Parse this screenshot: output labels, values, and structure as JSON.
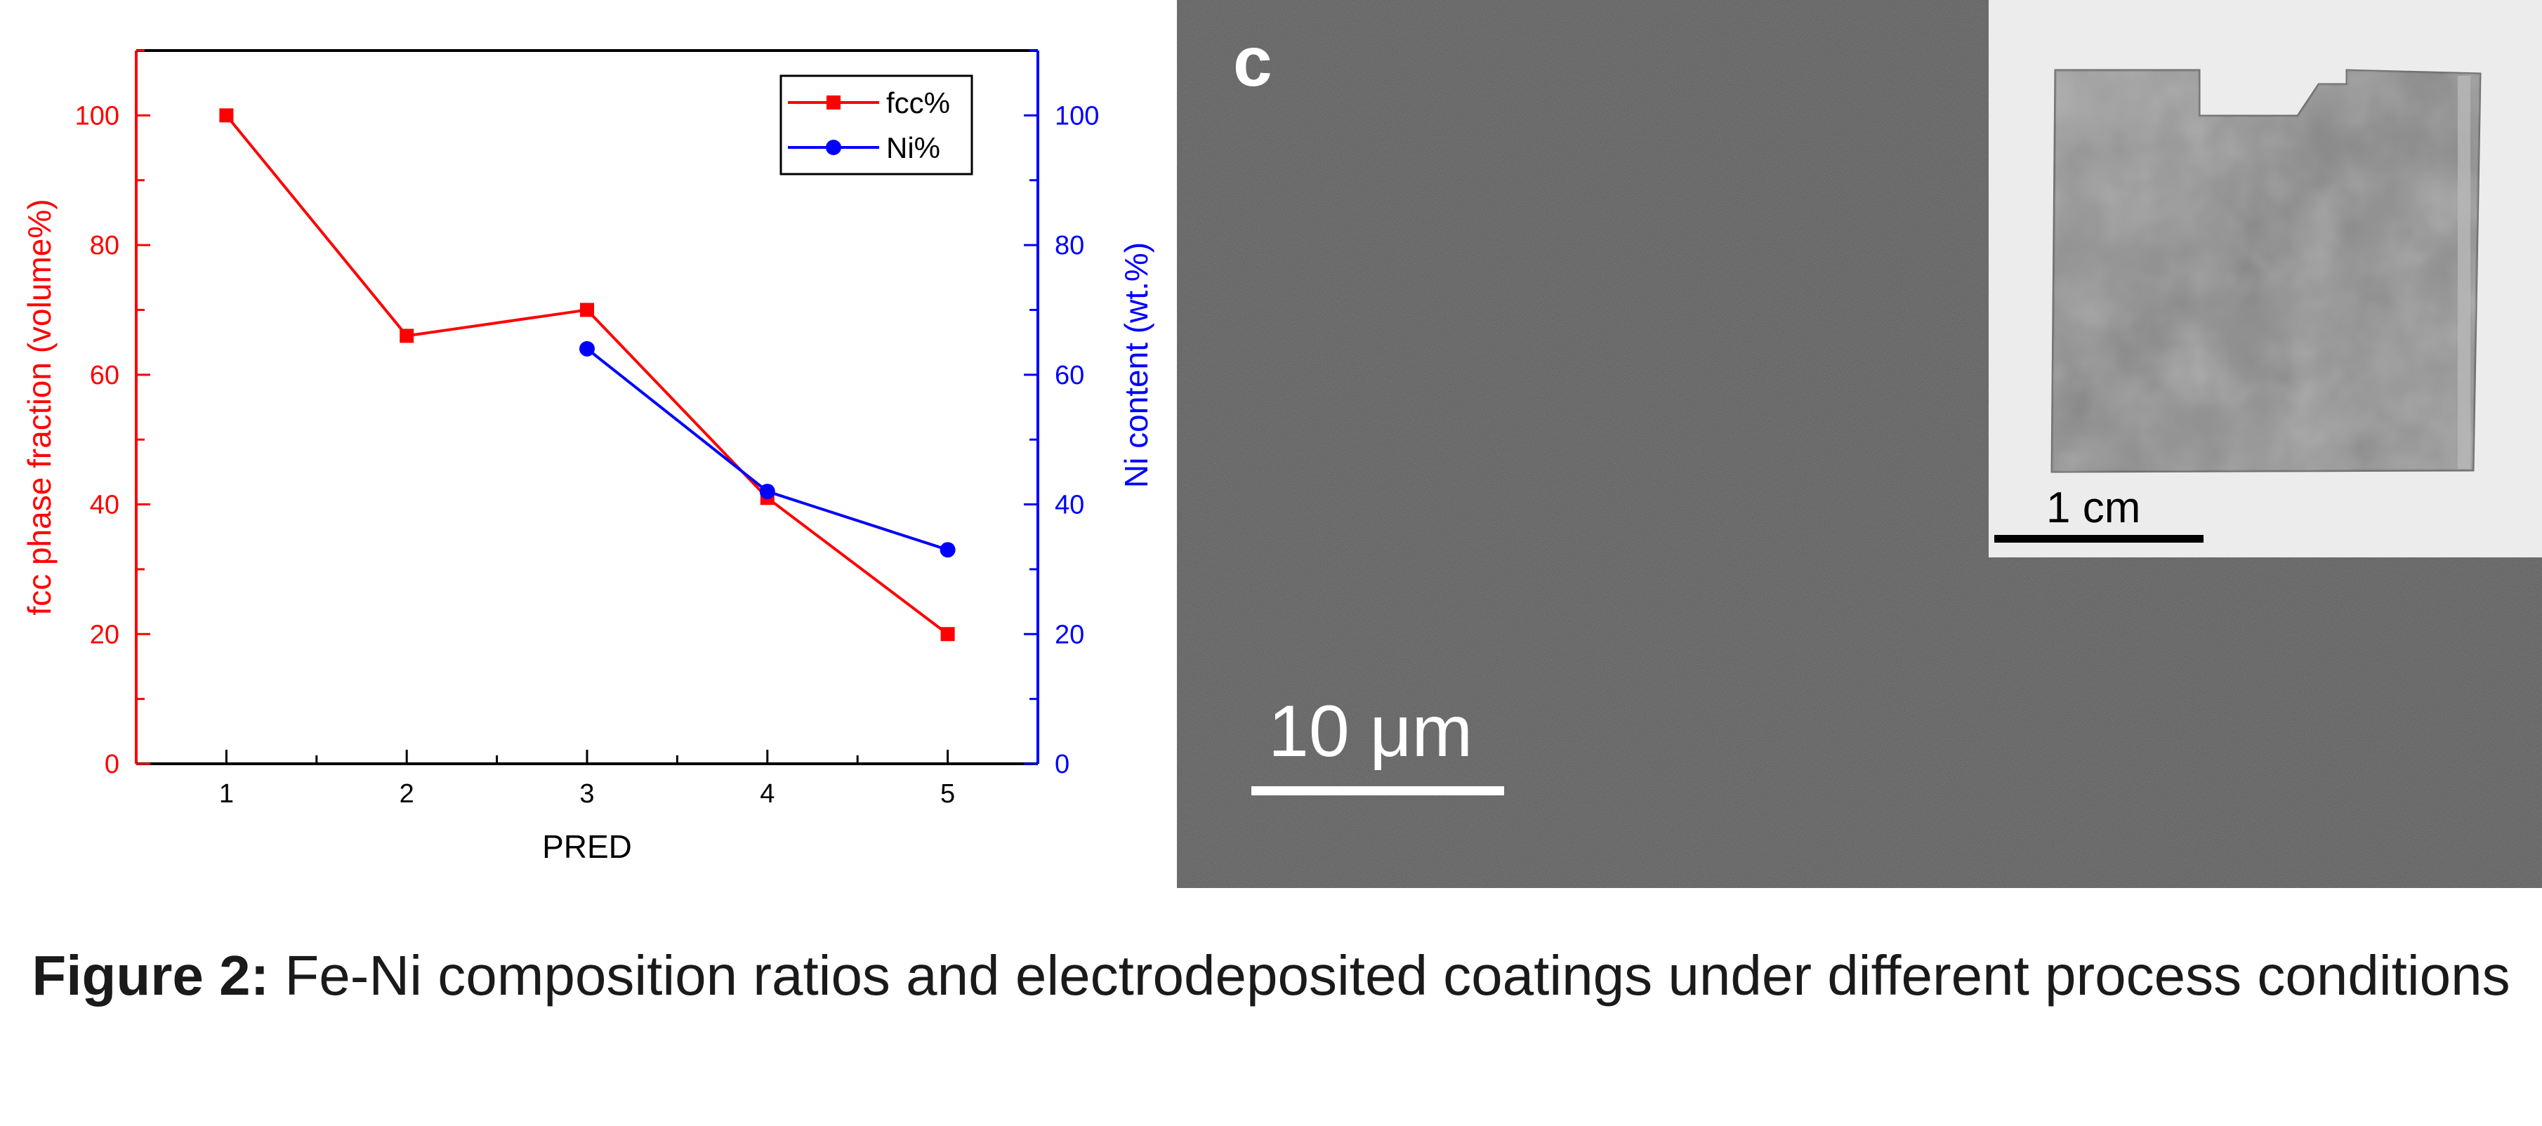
{
  "chart_data": {
    "type": "line",
    "x": [
      1,
      2,
      3,
      4,
      5
    ],
    "xlabel": "PRED",
    "xticks": [
      "1",
      "2",
      "3",
      "4",
      "5"
    ],
    "xlim": [
      0.5,
      5.5
    ],
    "y_left": {
      "label": "fcc phase fraction (volume%)",
      "ticks": [
        "0",
        "20",
        "40",
        "60",
        "80",
        "100"
      ],
      "ylim": [
        0,
        110
      ],
      "color": "#ff0000"
    },
    "y_right": {
      "label": "Ni content (wt.%)",
      "ticks": [
        "0",
        "20",
        "40",
        "60",
        "80",
        "100"
      ],
      "ylim": [
        0,
        110
      ],
      "color": "#0000ff"
    },
    "series": [
      {
        "name": "fcc%",
        "axis": "left",
        "color": "#ff0000",
        "marker": "square",
        "x": [
          1,
          2,
          3,
          4,
          5
        ],
        "values": [
          100,
          66,
          70,
          41,
          20
        ]
      },
      {
        "name": "Ni%",
        "axis": "right",
        "color": "#0000ff",
        "marker": "circle",
        "x": [
          3,
          4,
          5
        ],
        "values": [
          64,
          42,
          33
        ]
      }
    ],
    "legend_position": "top-right",
    "grid": false
  },
  "micrograph": {
    "panel_letter": "c",
    "scale_bar": "10 μm",
    "background_color": "#5b5b5b",
    "inset": {
      "scale_bar": "1 cm"
    }
  },
  "caption": {
    "label": "Figure 2:",
    "text": " Fe-Ni composition ratios and electrodeposited coatings under different process conditions"
  }
}
